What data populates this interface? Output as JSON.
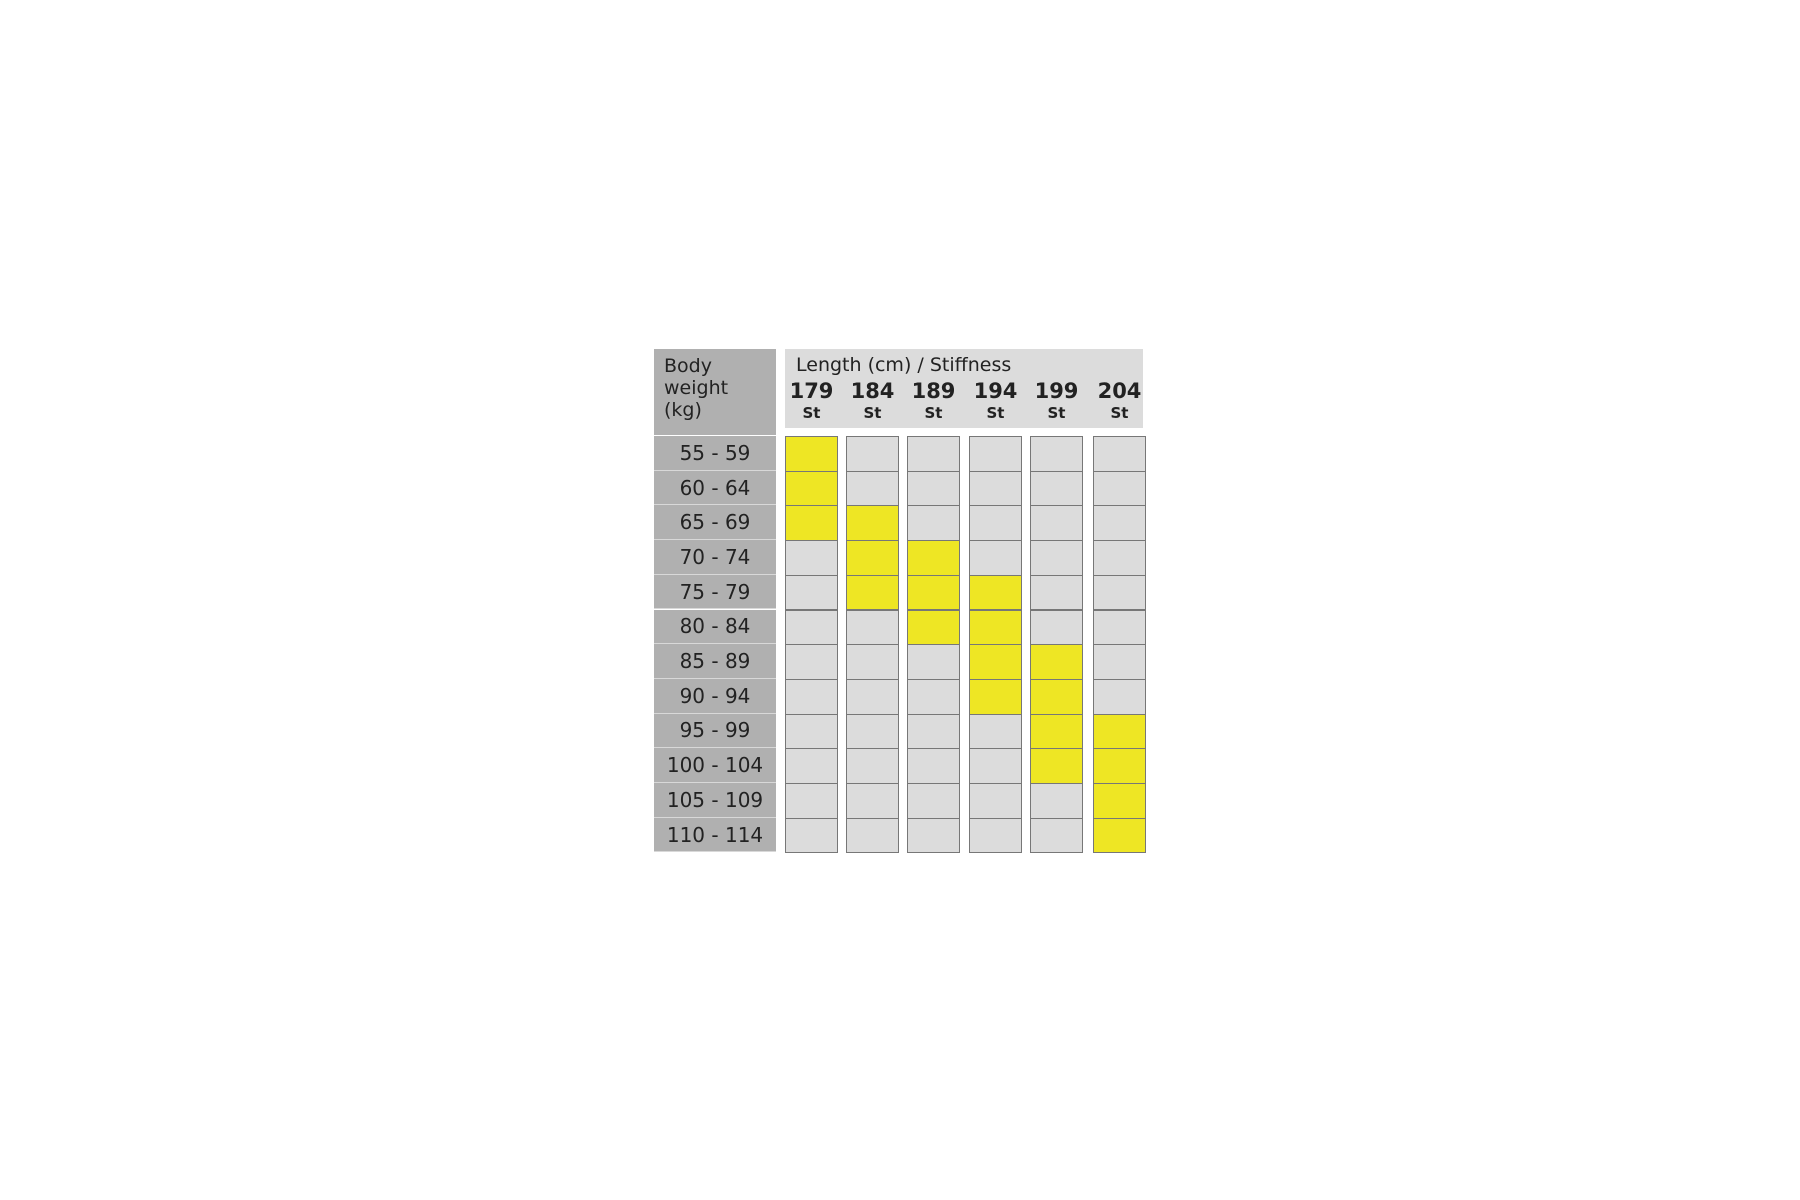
{
  "table": {
    "weight_header": "Body weight (kg)",
    "length_header": "Length (cm) / Stiffness",
    "columns": [
      {
        "length": "179",
        "stiffness": "St"
      },
      {
        "length": "184",
        "stiffness": "St"
      },
      {
        "length": "189",
        "stiffness": "St"
      },
      {
        "length": "194",
        "stiffness": "St"
      },
      {
        "length": "199",
        "stiffness": "St"
      },
      {
        "length": "204",
        "stiffness": "St"
      }
    ],
    "highlight_color": "#eee624",
    "cell_color": "#dcdcdc",
    "rows": [
      {
        "weight": "55 - 59",
        "cells": [
          true,
          false,
          false,
          false,
          false,
          false
        ]
      },
      {
        "weight": "60 - 64",
        "cells": [
          true,
          false,
          false,
          false,
          false,
          false
        ]
      },
      {
        "weight": "65 - 69",
        "cells": [
          true,
          true,
          false,
          false,
          false,
          false
        ]
      },
      {
        "weight": "70 - 74",
        "cells": [
          false,
          true,
          true,
          false,
          false,
          false
        ]
      },
      {
        "weight": "75 - 79",
        "cells": [
          false,
          true,
          true,
          true,
          false,
          false
        ]
      },
      {
        "weight": "80 - 84",
        "cells": [
          false,
          false,
          true,
          true,
          false,
          false
        ]
      },
      {
        "weight": "85 - 89",
        "cells": [
          false,
          false,
          false,
          true,
          true,
          false
        ]
      },
      {
        "weight": "90 - 94",
        "cells": [
          false,
          false,
          false,
          true,
          true,
          false
        ]
      },
      {
        "weight": "95 - 99",
        "cells": [
          false,
          false,
          false,
          false,
          true,
          true
        ]
      },
      {
        "weight": "100 - 104",
        "cells": [
          false,
          false,
          false,
          false,
          true,
          true
        ]
      },
      {
        "weight": "105 - 109",
        "cells": [
          false,
          false,
          false,
          false,
          false,
          true
        ]
      },
      {
        "weight": "110 - 114",
        "cells": [
          false,
          false,
          false,
          false,
          false,
          true
        ]
      }
    ]
  }
}
